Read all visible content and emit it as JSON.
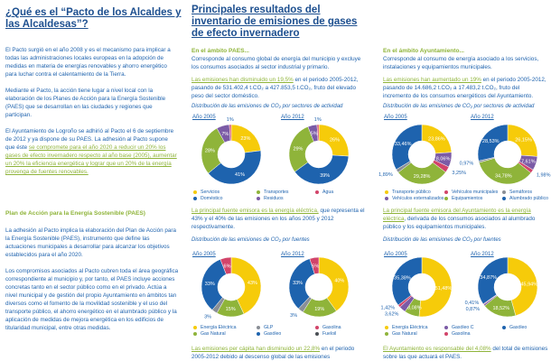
{
  "left": {
    "title": "¿Qué es el “Pacto de los Alcaldes y las Alcaldesas”?",
    "p1": "El Pacto surgió en el año 2008 y es el mecanismo para implicar a todas las administraciones locales europeas en la adopción de medidas en materia de energías renovables y ahorro energético para luchar contra el calentamiento de la Tierra.",
    "p2": "Mediante el Pacto, la acción tiene lugar a nivel local con la elaboración de los Planes de Acción para la Energía Sostenible (PAES) que se desarrollan en las ciudades y regiones que participan.",
    "p3a": "El Ayuntamiento de Logroño se adhirió al Pacto el 6 de septiembre de 2012 y ya dispone de su PAES. La adhesión al Pacto supone que éste ",
    "p3b": "se compromete para el año 2020 a reducir un 20% los gases de efecto invernadero respecto al año base (2005), aumentar un 20% la eficiencia energética y lograr que un 20% de la energía provenga de fuentes renovables.",
    "heading": "Plan de Acción para la Energía Sostenible (PAES)",
    "p4": "La adhesión al Pacto implica la elaboración del Plan de Acción para la Energía Sostenible (PAES), instrumento que define las actuaciones municipales a desarrollar para alcanzar los objetivos establecidos para el año 2020.",
    "p5": "Los compromisos asociados al Pacto cubren toda el área geográfica correspondiente al municipio y, por tanto, el PAES incluye acciones concretas tanto en el sector público como en el privado. Actúa a nivel municipal y de gestión del propio Ayuntamiento en ámbitos tan diversos como el fomento de la movilidad sostenible y el uso del transporte público, el ahorro energético en el alumbrado público y la aplicación de medidas de mejora energética en los edificios de titularidad municipal, entre otras medidas."
  },
  "middle": {
    "title": "Principales resultados del inventario de emisiones de gases de efecto invernadero",
    "sub": "En el ámbito PAES...",
    "p1": "Corresponde al consumo global de energía del municipio y excluye los consumos asociados al sector industrial y primario.",
    "p2a": "Las emisiones han disminuido un 19,5%",
    "p2b": " en el periodo 2005-2012, pasando de 531.402,4 t.CO₂ a 427.853,5 t.CO₂, fruto del elevado peso del sector doméstico.",
    "cap1": "Distribución de las emisiones de CO₂ por sectores de actividad",
    "legend1": [
      "Servicios",
      "Transportes",
      "Agua",
      "Doméstico",
      "Residuos"
    ],
    "p3a": "La principal fuente emisora es la energía eléctrica,",
    "p3b": " que representa el 43% y el 40% de las emisiones en los años 2005 y 2012 respectivamente.",
    "cap2": "Distribución de las emisiones de CO₂ por fuentes",
    "legend2": [
      "Energía Eléctrica",
      "GLP",
      "Gasolina",
      "Gas Natural",
      "Gasóleo",
      "Fueloil"
    ],
    "p4a": "Las emisiones per cápita han disminuido un 22,8%",
    "p4b": " en el periodo 2005-2012 debido al descenso global de las emisiones"
  },
  "right": {
    "sub": "En el ámbito Ayuntamiento...",
    "p1": "Corresponde al consumo de energía asociado a los servicios, instalaciones y equipamientos municipales.",
    "p2a": "Las emisiones han aumentado un 19%",
    "p2b": " en el periodo 2005-2012, pasando de 14.686,2 t.CO₂ a 17.483,2 t.CO₂, fruto del incremento de los consumos energéticos del Ayuntamiento.",
    "cap1": "Distribución de las emisiones de CO₂ por sectores de actividad",
    "legend1": [
      "Transporte público",
      "Vehículos municipales",
      "Semáforos",
      "Vehículos externalizados",
      "Equipamientos",
      "Alumbrado público"
    ],
    "p3a": "La principal fuente emisora del Ayuntamiento es la energía eléctrica",
    "p3b": ", derivada de los consumos asociados al alumbrado público y los equipamientos municipales.",
    "cap2": "Distribución de las emisiones de CO₂ por fuentes",
    "legend2": [
      "Energía Eléctrica",
      "Gasóleo C",
      "Gasóleo",
      "Gas Natural",
      "Gasolina"
    ],
    "p4a": "El Ayuntamiento es responsable del 4,08%",
    "p4b": " del total de emisiones sobre las que actuará el PAES."
  },
  "colors": {
    "yellow": "#f6cb0a",
    "blue": "#1e63ae",
    "green": "#8fb43a",
    "purple": "#7b5ba6",
    "red": "#d2446a",
    "grey": "#8a8f96",
    "dark": "#4a4f55"
  },
  "legend_colors": {
    "m1": [
      "yellow",
      "green",
      "red",
      "blue",
      "purple"
    ],
    "m2": [
      "yellow",
      "grey",
      "red",
      "green",
      "blue",
      "dark"
    ],
    "r1": [
      "yellow",
      "red",
      "grey",
      "purple",
      "green",
      "blue"
    ],
    "r2": [
      "yellow",
      "purple",
      "blue",
      "green",
      "red"
    ]
  },
  "chart_data": [
    {
      "type": "pie",
      "title": "Año 2005",
      "slices": [
        {
          "name": "Servicios",
          "value": 23,
          "label": "23%",
          "color": "yellow"
        },
        {
          "name": "Doméstico",
          "value": 41,
          "label": "41%",
          "color": "blue"
        },
        {
          "name": "Transportes",
          "value": 28,
          "label": "28%",
          "color": "green"
        },
        {
          "name": "Residuos",
          "value": 7,
          "label": "7%",
          "color": "purple"
        },
        {
          "name": "Agua",
          "value": 1,
          "label": "1%",
          "color": "red"
        }
      ]
    },
    {
      "type": "pie",
      "title": "Año 2012",
      "slices": [
        {
          "name": "Servicios",
          "value": 26,
          "label": "26%",
          "color": "yellow"
        },
        {
          "name": "Doméstico",
          "value": 39,
          "label": "39%",
          "color": "blue"
        },
        {
          "name": "Transportes",
          "value": 29,
          "label": "29%",
          "color": "green"
        },
        {
          "name": "Residuos",
          "value": 5,
          "label": "5%",
          "color": "purple"
        },
        {
          "name": "Agua",
          "value": 1,
          "label": "1%",
          "color": "red"
        }
      ]
    },
    {
      "type": "pie",
      "title": "Año 2005",
      "slices": [
        {
          "name": "Energía Eléctrica",
          "value": 43,
          "label": "43%",
          "color": "yellow"
        },
        {
          "name": "Gas Natural",
          "value": 15,
          "label": "15%",
          "color": "green"
        },
        {
          "name": "GLP",
          "value": 3,
          "label": "3%",
          "color": "grey"
        },
        {
          "name": "Gasóleo",
          "value": 33,
          "label": "33%",
          "color": "blue"
        },
        {
          "name": "Gasolina",
          "value": 6,
          "label": "6%",
          "color": "red"
        }
      ]
    },
    {
      "type": "pie",
      "title": "Año 2012",
      "slices": [
        {
          "name": "Energía Eléctrica",
          "value": 40,
          "label": "40%",
          "color": "yellow"
        },
        {
          "name": "Gas Natural",
          "value": 19,
          "label": "19%",
          "color": "green"
        },
        {
          "name": "GLP",
          "value": 3,
          "label": "3%",
          "color": "grey"
        },
        {
          "name": "Gasóleo",
          "value": 33,
          "label": "33%",
          "color": "blue"
        },
        {
          "name": "Gasolina",
          "value": 5,
          "label": "5%",
          "color": "red"
        }
      ]
    },
    {
      "type": "pie",
      "title": "Año 2005",
      "slices": [
        {
          "name": "Transporte público",
          "value": 23.86,
          "label": "23,86%",
          "color": "yellow"
        },
        {
          "name": "Vehículos externalizados",
          "value": 8.06,
          "label": "8,06%",
          "color": "purple"
        },
        {
          "name": "Vehículos municipales",
          "value": 3.25,
          "label": "3,25%",
          "color": "red"
        },
        {
          "name": "Equipamientos",
          "value": 29.28,
          "label": "29,28%",
          "color": "green"
        },
        {
          "name": "Semáforos",
          "value": 1.89,
          "label": "1,89%",
          "color": "grey"
        },
        {
          "name": "Alumbrado público",
          "value": 33.46,
          "label": "33,46%",
          "color": "blue"
        }
      ]
    },
    {
      "type": "pie",
      "title": "Año 2012",
      "slices": [
        {
          "name": "Transporte público",
          "value": 26.15,
          "label": "26,15%",
          "color": "yellow"
        },
        {
          "name": "Vehículos externalizados",
          "value": 7.61,
          "label": "7,61%",
          "color": "purple"
        },
        {
          "name": "Vehículos municipales",
          "value": 1.98,
          "label": "1,98%",
          "color": "red"
        },
        {
          "name": "Equipamientos",
          "value": 34.78,
          "label": "34,78%",
          "color": "green"
        },
        {
          "name": "Semáforos",
          "value": 0.97,
          "label": "0,97%",
          "color": "grey"
        },
        {
          "name": "Alumbrado público",
          "value": 28.53,
          "label": "28,53%",
          "color": "blue"
        }
      ]
    },
    {
      "type": "pie",
      "title": "Año 2005",
      "slices": [
        {
          "name": "Energía Eléctrica",
          "value": 51.48,
          "label": "51,48%",
          "color": "yellow"
        },
        {
          "name": "Gas Natural",
          "value": 8.08,
          "label": "8,08%",
          "color": "green"
        },
        {
          "name": "Gasóleo C",
          "value": 3.62,
          "label": "3,62%",
          "color": "purple"
        },
        {
          "name": "Gasolina",
          "value": 1.42,
          "label": "1,42%",
          "color": "red"
        },
        {
          "name": "Gasóleo",
          "value": 35.38,
          "label": "35,38%",
          "color": "blue"
        }
      ]
    },
    {
      "type": "pie",
      "title": "Año 2012",
      "slices": [
        {
          "name": "Energía Eléctrica",
          "value": 45.94,
          "label": "45,94%",
          "color": "yellow"
        },
        {
          "name": "Gas Natural",
          "value": 18.52,
          "label": "18,52%",
          "color": "green"
        },
        {
          "name": "Gasóleo C",
          "value": 0.87,
          "label": "0,87%",
          "color": "purple"
        },
        {
          "name": "Gasolina",
          "value": 0.41,
          "label": "0,41%",
          "color": "red"
        },
        {
          "name": "Gasóleo",
          "value": 34.87,
          "label": "34,87%",
          "color": "blue"
        }
      ]
    }
  ]
}
